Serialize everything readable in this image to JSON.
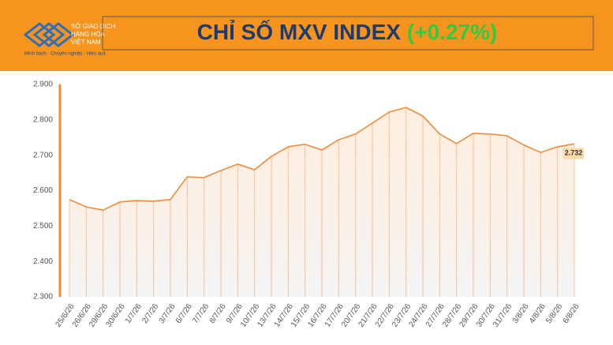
{
  "header": {
    "logo_lines": [
      "SỞ GIAO DỊCH",
      "HÀNG HÓA",
      "VIỆT NAM"
    ],
    "tagline": "Minh bạch - Chuyên nghiệp - Hiệu quả"
  },
  "chart_data": {
    "type": "area",
    "title": "CHỈ SỐ MXV INDEX",
    "title_change": "(+0.27%)",
    "categories": [
      "25/6/26",
      "26/6/26",
      "29/6/26",
      "30/6/26",
      "1/7/26",
      "2/7/26",
      "3/7/26",
      "6/7/26",
      "7/7/26",
      "8/7/26",
      "9/7/26",
      "10/7/26",
      "13/7/26",
      "14/7/26",
      "15/7/26",
      "16/7/26",
      "17/7/26",
      "20/7/26",
      "21/7/26",
      "22/7/26",
      "23/7/26",
      "24/7/26",
      "27/7/26",
      "28/7/26",
      "29/7/26",
      "30/7/26",
      "31/7/26",
      "3/8/26",
      "4/8/26",
      "5/8/26",
      "6/8/26"
    ],
    "values": [
      2575,
      2554,
      2545,
      2568,
      2572,
      2570,
      2575,
      2639,
      2637,
      2657,
      2675,
      2659,
      2697,
      2724,
      2731,
      2715,
      2744,
      2760,
      2791,
      2822,
      2835,
      2811,
      2760,
      2733,
      2762,
      2760,
      2755,
      2729,
      2708,
      2724,
      2732
    ],
    "value_labels": [
      null,
      null,
      null,
      null,
      null,
      null,
      null,
      null,
      null,
      null,
      null,
      null,
      null,
      null,
      null,
      null,
      null,
      null,
      null,
      null,
      null,
      null,
      null,
      null,
      null,
      null,
      null,
      null,
      null,
      null,
      "2.732"
    ],
    "color": "#f08a3c",
    "ylim": [
      2300,
      2900
    ],
    "yticks": [
      {
        "value": 2300,
        "label": "2.300"
      },
      {
        "value": 2400,
        "label": "2.400"
      },
      {
        "value": 2500,
        "label": "2.500"
      },
      {
        "value": 2600,
        "label": "2.600"
      },
      {
        "value": 2700,
        "label": "2.700"
      },
      {
        "value": 2800,
        "label": "2.800"
      },
      {
        "value": 2900,
        "label": "2.900"
      }
    ]
  }
}
